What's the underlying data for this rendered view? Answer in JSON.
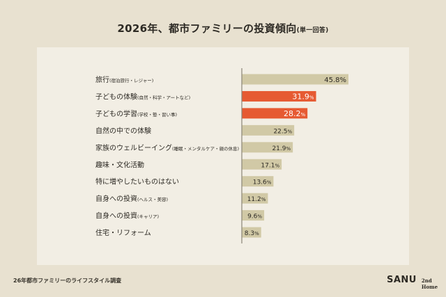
{
  "header": {
    "title": "2026年、都市ファミリーの投資傾向",
    "title_note": "(単一回答)"
  },
  "footer": {
    "source": "26年都市ファミリーのライフスタイル調査",
    "brand": "SANU",
    "brand_sub": "2nd Home"
  },
  "colors": {
    "background": "#e8e1d0",
    "panel": "#f2eee4",
    "bar_default": "#d1c9a6",
    "bar_highlight": "#e65a32",
    "axis": "#8a8576",
    "text": "#2d2a24"
  },
  "chart_data": {
    "type": "bar",
    "orientation": "horizontal",
    "title": "2026年、都市ファミリーの投資傾向(単一回答)",
    "xlabel": "",
    "ylabel": "",
    "unit": "%",
    "xlim": [
      0,
      50
    ],
    "grid": false,
    "legend": "none",
    "categories": [
      {
        "label": "旅行",
        "note": "(宿泊旅行・レジャー)"
      },
      {
        "label": "子どもの体験",
        "note": "(自然・科学・アートなど)"
      },
      {
        "label": "子どもの学習",
        "note": "(学校・塾・習い事)"
      },
      {
        "label": "自然の中での体験",
        "note": ""
      },
      {
        "label": "家族のウェルビーイング",
        "note": "(睡眠・メンタルケア・親の休息)"
      },
      {
        "label": "趣味・文化活動",
        "note": ""
      },
      {
        "label": "特に増やしたいものはない",
        "note": ""
      },
      {
        "label": "自身への投資",
        "note": "(ヘルス・美容)"
      },
      {
        "label": "自身への投資",
        "note": "(キャリア)"
      },
      {
        "label": "住宅・リフォーム",
        "note": ""
      }
    ],
    "values": [
      45.8,
      31.9,
      28.2,
      22.5,
      21.9,
      17.1,
      13.6,
      11.2,
      9.6,
      8.3
    ],
    "value_labels": [
      "45.8%",
      "31.9%",
      "28.2%",
      "22.5%",
      "21.9%",
      "17.1%",
      "13.6%",
      "11.2%",
      "9.6%",
      "8.3%"
    ],
    "highlighted": [
      false,
      true,
      true,
      false,
      false,
      false,
      false,
      false,
      false,
      false
    ]
  }
}
